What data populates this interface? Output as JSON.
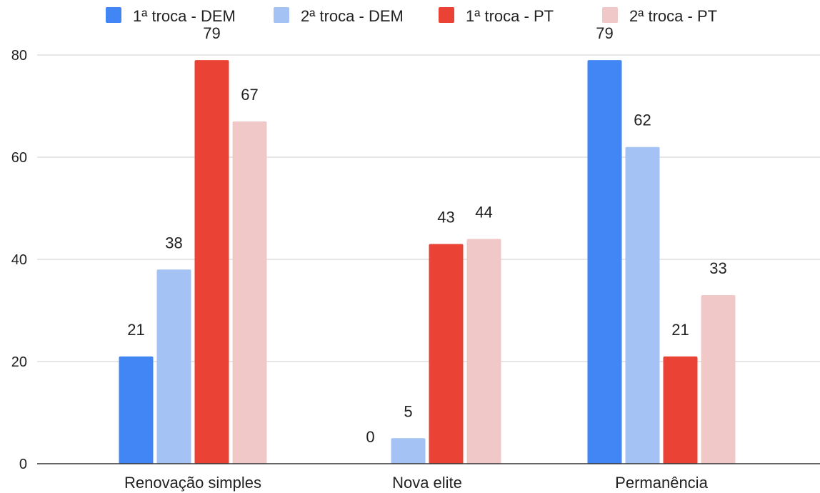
{
  "chart_data": {
    "type": "bar",
    "categories": [
      "Renovação simples",
      "Nova elite",
      "Permanência"
    ],
    "series": [
      {
        "name": "1ª troca - DEM",
        "color": "#4285f4",
        "values": [
          21,
          0,
          79
        ]
      },
      {
        "name": "2ª troca - DEM",
        "color": "#a4c2f4",
        "values": [
          38,
          5,
          62
        ]
      },
      {
        "name": "1ª troca - PT",
        "color": "#ea4335",
        "values": [
          79,
          43,
          21
        ]
      },
      {
        "name": "2ª troca - PT",
        "color": "#f0c8c8",
        "values": [
          67,
          44,
          33
        ]
      }
    ],
    "ylim": [
      0,
      80
    ],
    "yticks": [
      0,
      20,
      40,
      60,
      80
    ],
    "grid": true,
    "legend": "top",
    "data_labels": true,
    "title": "",
    "xlabel": "",
    "ylabel": ""
  }
}
